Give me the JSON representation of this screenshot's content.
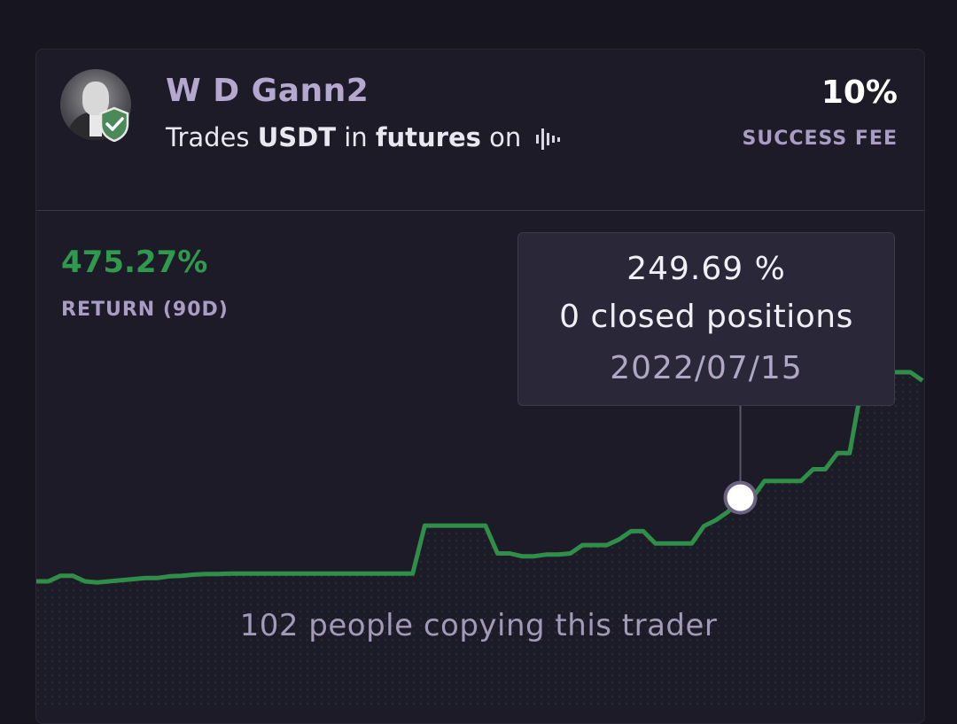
{
  "trader": {
    "name": "W D Gann2",
    "trades_prefix": "Trades",
    "currency": "USDT",
    "in_word": "in",
    "market": "futures",
    "on_word": "on",
    "exchange_icon": "exchange-bars-icon",
    "verified_icon": "verified-shield-icon"
  },
  "fee": {
    "value": "10%",
    "label": "SUCCESS FEE"
  },
  "stats": {
    "return_value": "475.27%",
    "return_label": "RETURN (90D)"
  },
  "tooltip": {
    "value": "249.69 %",
    "positions": "0 closed positions",
    "date": "2022/07/15"
  },
  "footer": {
    "copying": "102 people copying this trader"
  },
  "colors": {
    "line": "#2f8f48",
    "return": "#2f9a4e",
    "accent": "#b5a8cf",
    "background": "#17151f"
  },
  "chart_data": {
    "type": "line",
    "title": "",
    "xlabel": "",
    "ylabel": "",
    "grid": false,
    "points_return_pct": [
      100,
      100,
      110,
      110,
      100,
      98,
      100,
      102,
      104,
      106,
      106,
      109,
      110,
      112,
      113,
      113,
      114,
      114,
      114,
      114,
      114,
      114,
      114,
      114,
      114,
      114,
      114,
      114,
      114,
      114,
      114,
      114,
      200,
      200,
      200,
      200,
      200,
      200,
      150,
      150,
      145,
      145,
      148,
      148,
      150,
      165,
      165,
      165,
      175,
      190,
      190,
      168,
      168,
      168,
      168,
      199,
      210,
      225,
      250,
      250,
      280,
      280,
      280,
      280,
      301,
      301,
      330,
      330,
      450,
      475,
      475,
      475,
      475,
      460
    ],
    "highlight_index": 58
  }
}
